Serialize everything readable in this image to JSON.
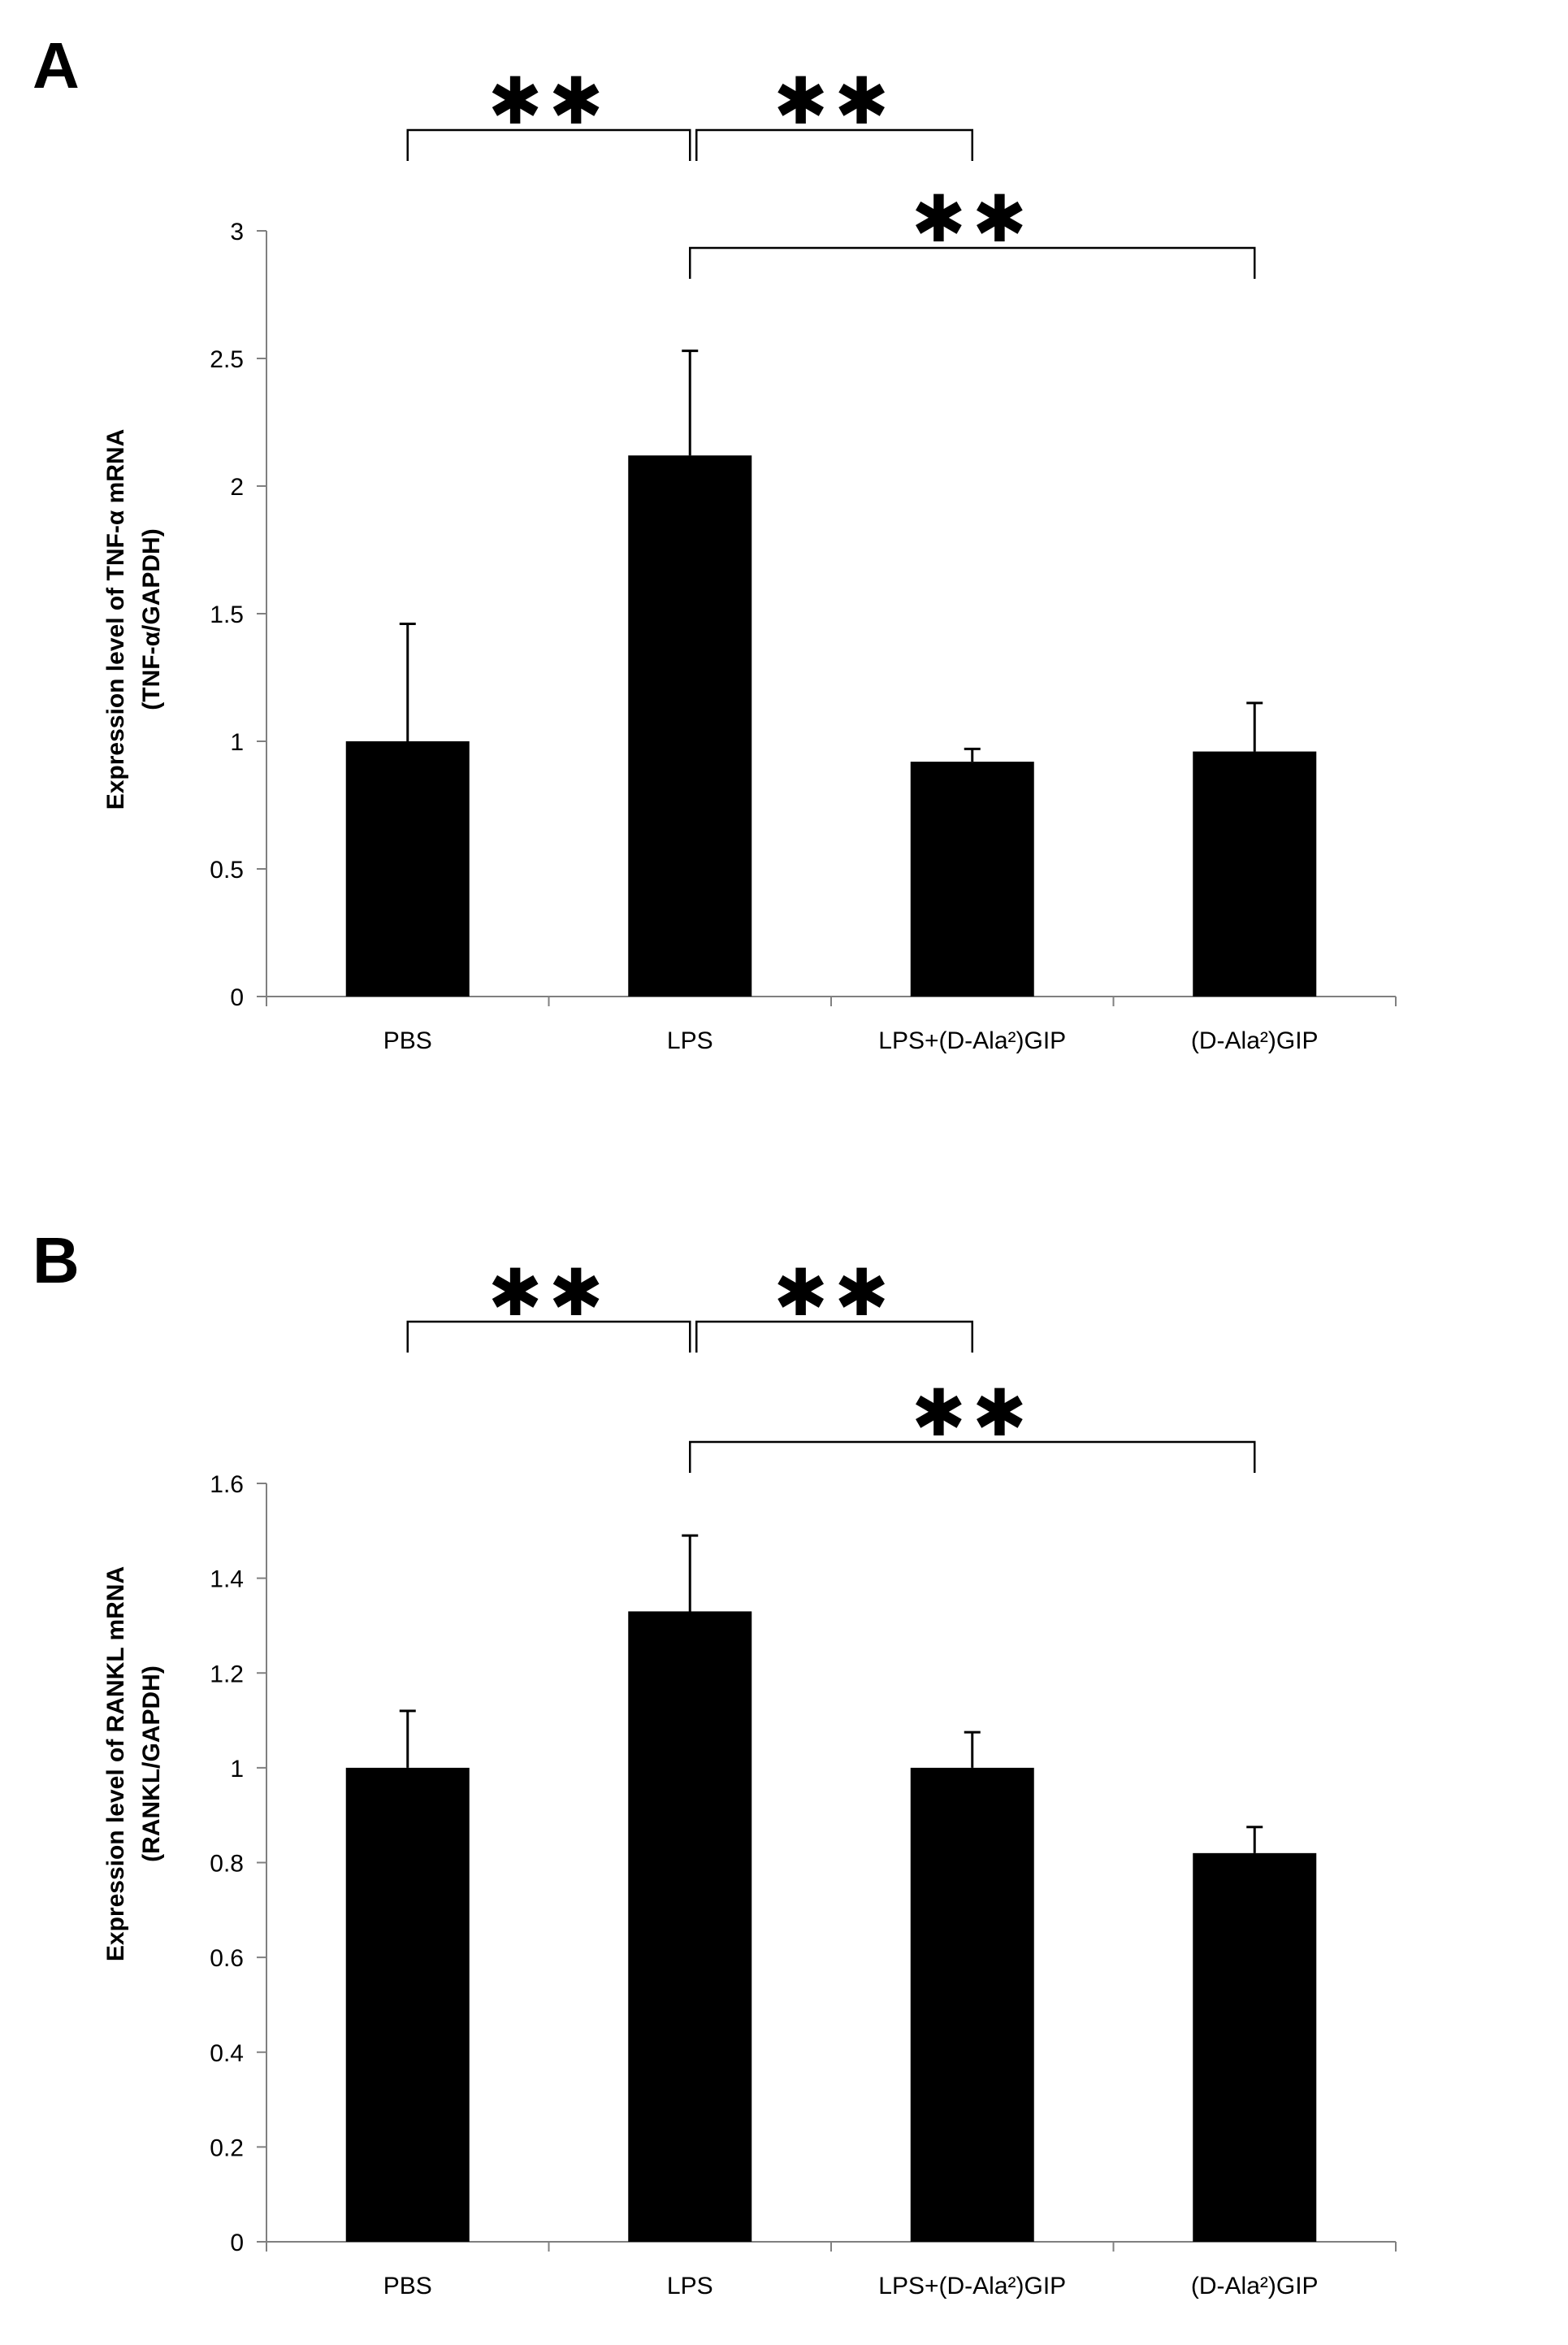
{
  "chart_data": [
    {
      "panel": "A",
      "type": "bar",
      "categories": [
        "PBS",
        "LPS",
        "LPS+(D-Ala²)GIP",
        "(D-Ala²)GIP"
      ],
      "values": [
        1.0,
        2.12,
        0.92,
        0.96
      ],
      "errors": [
        0.46,
        0.41,
        0.05,
        0.19
      ],
      "ylabel_line1": "Expression level of TNF-α mRNA",
      "ylabel_line2": "(TNF-α/GAPDH)",
      "ylim": [
        0,
        3
      ],
      "yticks": [
        0,
        0.5,
        1,
        1.5,
        2,
        2.5,
        3
      ],
      "ytick_labels": [
        "0",
        "0.5",
        "1",
        "1.5",
        "2",
        "2.5",
        "3"
      ],
      "grid": false,
      "significance": [
        {
          "from": 0,
          "to": 1,
          "label": "**"
        },
        {
          "from": 1,
          "to": 2,
          "label": "**"
        },
        {
          "from": 1,
          "to": 3,
          "label": "**"
        }
      ],
      "bar_color": "#000000"
    },
    {
      "panel": "B",
      "type": "bar",
      "categories": [
        "PBS",
        "LPS",
        "LPS+(D-Ala²)GIP",
        "(D-Ala²)GIP"
      ],
      "values": [
        1.0,
        1.33,
        1.0,
        0.82
      ],
      "errors": [
        0.12,
        0.16,
        0.075,
        0.055
      ],
      "ylabel_line1": "Expression level of RANKL mRNA",
      "ylabel_line2": "(RANKL/GAPDH)",
      "ylim": [
        0,
        1.6
      ],
      "yticks": [
        0,
        0.2,
        0.4,
        0.6,
        0.8,
        1,
        1.2,
        1.4,
        1.6
      ],
      "ytick_labels": [
        "0",
        "0.2",
        "0.4",
        "0.6",
        "0.8",
        "1",
        "1.2",
        "1.4",
        "1.6"
      ],
      "grid": false,
      "significance": [
        {
          "from": 0,
          "to": 1,
          "label": "**"
        },
        {
          "from": 1,
          "to": 2,
          "label": "**"
        },
        {
          "from": 1,
          "to": 3,
          "label": "**"
        }
      ],
      "bar_color": "#000000"
    }
  ]
}
